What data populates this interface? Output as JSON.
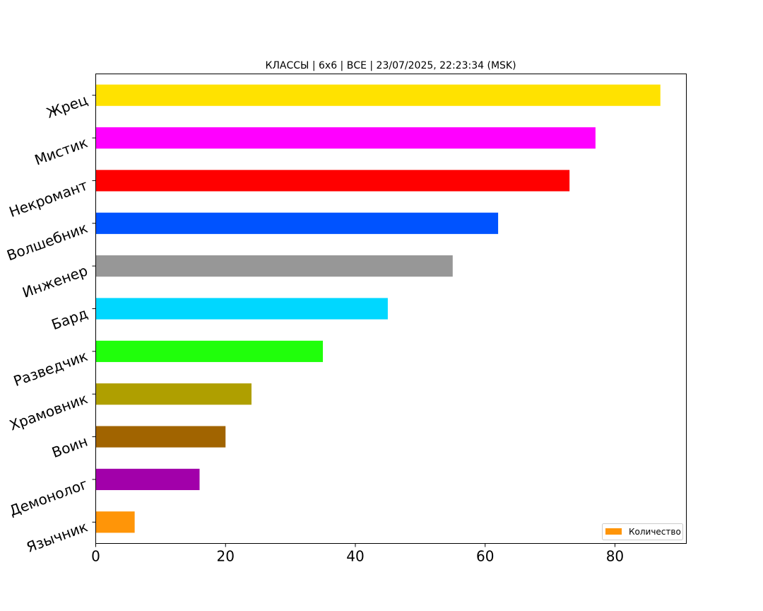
{
  "chart_data": {
    "type": "bar",
    "orientation": "horizontal",
    "title": "КЛАССЫ | 6х6 | ВСЕ | 23/07/2025, 22:23:34 (MSK)",
    "xlabel": "",
    "ylabel": "",
    "xlim": [
      0,
      91
    ],
    "xticks": [
      0,
      20,
      40,
      60,
      80
    ],
    "grid": false,
    "legend_position": "bottom-right",
    "legend": [
      {
        "label": "Количество",
        "color": "#FF9508"
      }
    ],
    "categories": [
      "Жрец",
      "Мистик",
      "Некромант",
      "Волшебник",
      "Инженер",
      "Бард",
      "Разведчик",
      "Храмовник",
      "Воин",
      "Демонолог",
      "Язычник"
    ],
    "values": [
      87,
      77,
      73,
      62,
      55,
      45,
      35,
      24,
      20,
      16,
      6
    ],
    "colors": [
      "#FFE200",
      "#FF00FF",
      "#FF0000",
      "#0053FF",
      "#979797",
      "#00D7FF",
      "#20FF0B",
      "#AF9F00",
      "#A16400",
      "#A200AA",
      "#FF9508"
    ]
  }
}
